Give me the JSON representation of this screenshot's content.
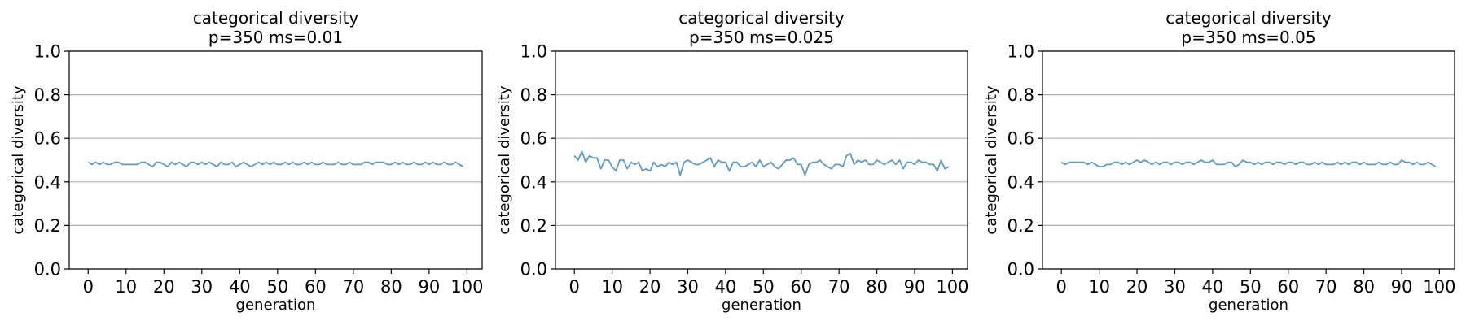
{
  "chart_data": [
    {
      "type": "line",
      "title": [
        "categorical diversity",
        "p=350 ms=0.01"
      ],
      "xlabel": "generation",
      "ylabel": "categorical diversity",
      "xlim": [
        -5,
        104
      ],
      "ylim": [
        0,
        1
      ],
      "xticks": [
        "0",
        "10",
        "20",
        "30",
        "40",
        "50",
        "60",
        "70",
        "80",
        "90",
        "100"
      ],
      "yticks": [
        "0.0",
        "0.2",
        "0.4",
        "0.6",
        "0.8",
        "1.0"
      ],
      "grid_y": true,
      "color": "#5b9bc8",
      "x_start": 0,
      "values": [
        0.49,
        0.48,
        0.49,
        0.48,
        0.49,
        0.48,
        0.48,
        0.49,
        0.49,
        0.48,
        0.48,
        0.48,
        0.48,
        0.48,
        0.49,
        0.49,
        0.48,
        0.47,
        0.49,
        0.49,
        0.48,
        0.47,
        0.49,
        0.48,
        0.49,
        0.48,
        0.47,
        0.49,
        0.49,
        0.48,
        0.49,
        0.48,
        0.49,
        0.48,
        0.47,
        0.49,
        0.48,
        0.48,
        0.49,
        0.47,
        0.48,
        0.49,
        0.48,
        0.47,
        0.48,
        0.49,
        0.48,
        0.49,
        0.48,
        0.49,
        0.48,
        0.48,
        0.49,
        0.48,
        0.49,
        0.48,
        0.48,
        0.49,
        0.48,
        0.49,
        0.48,
        0.48,
        0.49,
        0.48,
        0.48,
        0.48,
        0.49,
        0.48,
        0.48,
        0.49,
        0.48,
        0.48,
        0.48,
        0.49,
        0.49,
        0.48,
        0.49,
        0.49,
        0.49,
        0.48,
        0.48,
        0.49,
        0.48,
        0.49,
        0.48,
        0.48,
        0.49,
        0.48,
        0.48,
        0.49,
        0.48,
        0.49,
        0.48,
        0.48,
        0.49,
        0.48,
        0.48,
        0.49,
        0.48,
        0.47
      ]
    },
    {
      "type": "line",
      "title": [
        "categorical diversity",
        "p=350 ms=0.025"
      ],
      "xlabel": "generation",
      "ylabel": "categorical diversity",
      "xlim": [
        -5,
        104
      ],
      "ylim": [
        0,
        1
      ],
      "xticks": [
        "0",
        "10",
        "20",
        "30",
        "40",
        "50",
        "60",
        "70",
        "80",
        "90",
        "100"
      ],
      "yticks": [
        "0.0",
        "0.2",
        "0.4",
        "0.6",
        "0.8",
        "1.0"
      ],
      "grid_y": true,
      "color": "#5b9bc8",
      "x_start": 0,
      "values": [
        0.52,
        0.5,
        0.54,
        0.49,
        0.52,
        0.51,
        0.51,
        0.46,
        0.5,
        0.5,
        0.47,
        0.45,
        0.5,
        0.5,
        0.46,
        0.49,
        0.48,
        0.49,
        0.45,
        0.46,
        0.45,
        0.49,
        0.47,
        0.48,
        0.47,
        0.49,
        0.48,
        0.49,
        0.43,
        0.49,
        0.5,
        0.49,
        0.48,
        0.48,
        0.49,
        0.5,
        0.51,
        0.47,
        0.5,
        0.49,
        0.49,
        0.45,
        0.49,
        0.49,
        0.47,
        0.47,
        0.48,
        0.49,
        0.47,
        0.5,
        0.47,
        0.48,
        0.49,
        0.47,
        0.46,
        0.48,
        0.5,
        0.5,
        0.51,
        0.48,
        0.48,
        0.43,
        0.48,
        0.49,
        0.49,
        0.5,
        0.48,
        0.47,
        0.46,
        0.48,
        0.48,
        0.47,
        0.52,
        0.53,
        0.48,
        0.5,
        0.49,
        0.5,
        0.48,
        0.48,
        0.5,
        0.49,
        0.48,
        0.49,
        0.5,
        0.48,
        0.5,
        0.46,
        0.49,
        0.49,
        0.48,
        0.5,
        0.49,
        0.49,
        0.48,
        0.48,
        0.45,
        0.5,
        0.46,
        0.47
      ]
    },
    {
      "type": "line",
      "title": [
        "categorical diversity",
        "p=350 ms=0.05"
      ],
      "xlabel": "generation",
      "ylabel": "categorical diversity",
      "xlim": [
        -5,
        104
      ],
      "ylim": [
        0,
        1
      ],
      "xticks": [
        "0",
        "10",
        "20",
        "30",
        "40",
        "50",
        "60",
        "70",
        "80",
        "90",
        "100"
      ],
      "yticks": [
        "0.0",
        "0.2",
        "0.4",
        "0.6",
        "0.8",
        "1.0"
      ],
      "grid_y": true,
      "color": "#5b9bc8",
      "x_start": 0,
      "values": [
        0.49,
        0.48,
        0.49,
        0.49,
        0.49,
        0.49,
        0.49,
        0.48,
        0.49,
        0.48,
        0.47,
        0.47,
        0.48,
        0.48,
        0.49,
        0.49,
        0.48,
        0.49,
        0.48,
        0.49,
        0.5,
        0.49,
        0.5,
        0.49,
        0.48,
        0.49,
        0.48,
        0.49,
        0.49,
        0.48,
        0.49,
        0.49,
        0.48,
        0.49,
        0.49,
        0.48,
        0.49,
        0.5,
        0.49,
        0.49,
        0.5,
        0.48,
        0.48,
        0.48,
        0.49,
        0.49,
        0.47,
        0.48,
        0.5,
        0.49,
        0.49,
        0.48,
        0.49,
        0.48,
        0.49,
        0.49,
        0.48,
        0.49,
        0.49,
        0.48,
        0.49,
        0.49,
        0.48,
        0.49,
        0.49,
        0.48,
        0.48,
        0.49,
        0.48,
        0.49,
        0.48,
        0.48,
        0.48,
        0.49,
        0.48,
        0.49,
        0.48,
        0.49,
        0.49,
        0.48,
        0.49,
        0.48,
        0.48,
        0.48,
        0.49,
        0.48,
        0.48,
        0.49,
        0.48,
        0.48,
        0.5,
        0.49,
        0.49,
        0.48,
        0.49,
        0.48,
        0.48,
        0.49,
        0.48,
        0.47
      ]
    }
  ]
}
